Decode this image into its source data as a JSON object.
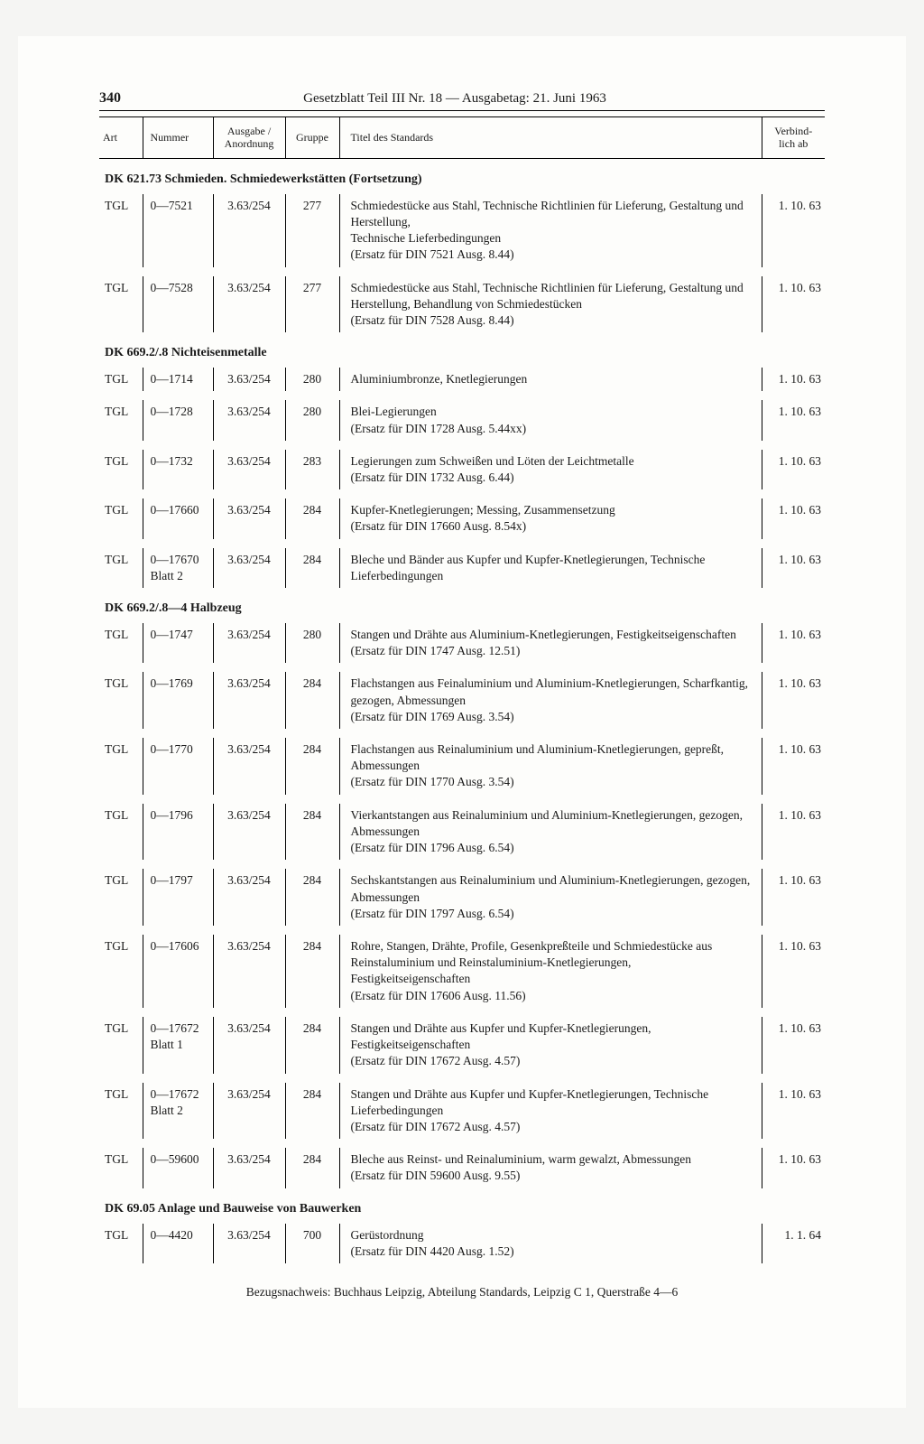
{
  "header": {
    "page_number": "340",
    "title": "Gesetzblatt Teil III Nr. 18 — Ausgabetag: 21. Juni 1963"
  },
  "columns": {
    "art": "Art",
    "nummer": "Nummer",
    "ausgabe": "Ausgabe /\nAnordnung",
    "gruppe": "Gruppe",
    "titel": "Titel des Standards",
    "verbind": "Verbind-\nlich ab"
  },
  "sections": [
    {
      "heading": "DK 621.73 Schmieden. Schmiedewerkstätten (Fortsetzung)",
      "rows": [
        {
          "art": "TGL",
          "nummer": "0—7521",
          "ausgabe": "3.63/254",
          "gruppe": "277",
          "titel": "Schmiedestücke aus Stahl, Technische Richtlinien für Lieferung, Gestaltung und Herstellung,\nTechnische Lieferbedingungen\n(Ersatz für DIN 7521 Ausg. 8.44)",
          "verbind": "1. 10. 63"
        },
        {
          "art": "TGL",
          "nummer": "0—7528",
          "ausgabe": "3.63/254",
          "gruppe": "277",
          "titel": "Schmiedestücke aus Stahl, Technische Richtlinien für Lieferung, Gestaltung und Herstellung, Behandlung von Schmiedestücken\n(Ersatz für DIN 7528 Ausg. 8.44)",
          "verbind": "1. 10. 63"
        }
      ]
    },
    {
      "heading": "DK 669.2/.8 Nichteisenmetalle",
      "rows": [
        {
          "art": "TGL",
          "nummer": "0—1714",
          "ausgabe": "3.63/254",
          "gruppe": "280",
          "titel": "Aluminiumbronze, Knetlegierungen",
          "verbind": "1. 10. 63"
        },
        {
          "art": "TGL",
          "nummer": "0—1728",
          "ausgabe": "3.63/254",
          "gruppe": "280",
          "titel": "Blei-Legierungen\n(Ersatz für DIN 1728 Ausg. 5.44xx)",
          "verbind": "1. 10. 63"
        },
        {
          "art": "TGL",
          "nummer": "0—1732",
          "ausgabe": "3.63/254",
          "gruppe": "283",
          "titel": "Legierungen zum Schweißen und Löten der Leichtmetalle\n(Ersatz für DIN 1732 Ausg. 6.44)",
          "verbind": "1. 10. 63"
        },
        {
          "art": "TGL",
          "nummer": "0—17660",
          "ausgabe": "3.63/254",
          "gruppe": "284",
          "titel": "Kupfer-Knetlegierungen; Messing, Zusammensetzung\n(Ersatz für DIN 17660 Ausg. 8.54x)",
          "verbind": "1. 10. 63"
        },
        {
          "art": "TGL",
          "nummer": "0—17670\nBlatt 2",
          "ausgabe": "3.63/254",
          "gruppe": "284",
          "titel": "Bleche und Bänder aus Kupfer und Kupfer-Knetlegierungen, Technische Lieferbedingungen",
          "verbind": "1. 10. 63"
        }
      ]
    },
    {
      "heading": "DK 669.2/.8—4 Halbzeug",
      "rows": [
        {
          "art": "TGL",
          "nummer": "0—1747",
          "ausgabe": "3.63/254",
          "gruppe": "280",
          "titel": "Stangen und Drähte aus Aluminium-Knetlegierungen, Festigkeitseigenschaften\n(Ersatz für DIN 1747 Ausg. 12.51)",
          "verbind": "1. 10. 63"
        },
        {
          "art": "TGL",
          "nummer": "0—1769",
          "ausgabe": "3.63/254",
          "gruppe": "284",
          "titel": "Flachstangen aus Feinaluminium und Aluminium-Knetlegierungen, Scharfkantig, gezogen, Abmessungen\n(Ersatz für DIN 1769 Ausg. 3.54)",
          "verbind": "1. 10. 63"
        },
        {
          "art": "TGL",
          "nummer": "0—1770",
          "ausgabe": "3.63/254",
          "gruppe": "284",
          "titel": "Flachstangen aus Reinaluminium und Aluminium-Knetlegierungen, gepreßt, Abmessungen\n(Ersatz für DIN 1770 Ausg. 3.54)",
          "verbind": "1. 10. 63"
        },
        {
          "art": "TGL",
          "nummer": "0—1796",
          "ausgabe": "3.63/254",
          "gruppe": "284",
          "titel": "Vierkantstangen aus Reinaluminium und Aluminium-Knetlegierungen, gezogen, Abmessungen\n(Ersatz für DIN 1796 Ausg. 6.54)",
          "verbind": "1. 10. 63"
        },
        {
          "art": "TGL",
          "nummer": "0—1797",
          "ausgabe": "3.63/254",
          "gruppe": "284",
          "titel": "Sechskantstangen aus Reinaluminium und Aluminium-Knetlegierungen, gezogen, Abmessungen\n(Ersatz für DIN 1797 Ausg. 6.54)",
          "verbind": "1. 10. 63"
        },
        {
          "art": "TGL",
          "nummer": "0—17606",
          "ausgabe": "3.63/254",
          "gruppe": "284",
          "titel": "Rohre, Stangen, Drähte, Profile, Gesenkpreßteile und Schmiedestücke aus Reinstaluminium und Reinstaluminium-Knetlegierungen, Festigkeitseigenschaften\n(Ersatz für DIN 17606 Ausg. 11.56)",
          "verbind": "1. 10. 63"
        },
        {
          "art": "TGL",
          "nummer": "0—17672\nBlatt 1",
          "ausgabe": "3.63/254",
          "gruppe": "284",
          "titel": "Stangen und Drähte aus Kupfer und Kupfer-Knetlegierungen, Festigkeitseigenschaften\n(Ersatz für DIN 17672 Ausg. 4.57)",
          "verbind": "1. 10. 63"
        },
        {
          "art": "TGL",
          "nummer": "0—17672\nBlatt 2",
          "ausgabe": "3.63/254",
          "gruppe": "284",
          "titel": "Stangen und Drähte aus Kupfer und Kupfer-Knetlegierungen, Technische Lieferbedingungen\n(Ersatz für DIN 17672 Ausg. 4.57)",
          "verbind": "1. 10. 63"
        },
        {
          "art": "TGL",
          "nummer": "0—59600",
          "ausgabe": "3.63/254",
          "gruppe": "284",
          "titel": "Bleche aus Reinst- und Reinaluminium, warm gewalzt, Abmessungen\n(Ersatz für DIN 59600 Ausg. 9.55)",
          "verbind": "1. 10. 63"
        }
      ]
    },
    {
      "heading": "DK 69.05 Anlage und Bauweise von Bauwerken",
      "rows": [
        {
          "art": "TGL",
          "nummer": "0—4420",
          "ausgabe": "3.63/254",
          "gruppe": "700",
          "titel": "Gerüstordnung\n(Ersatz für DIN 4420 Ausg. 1.52)",
          "verbind": "1.  1. 64"
        }
      ]
    }
  ],
  "footer": "Bezugsnachweis: Buchhaus Leipzig, Abteilung Standards, Leipzig C 1, Querstraße 4—6"
}
